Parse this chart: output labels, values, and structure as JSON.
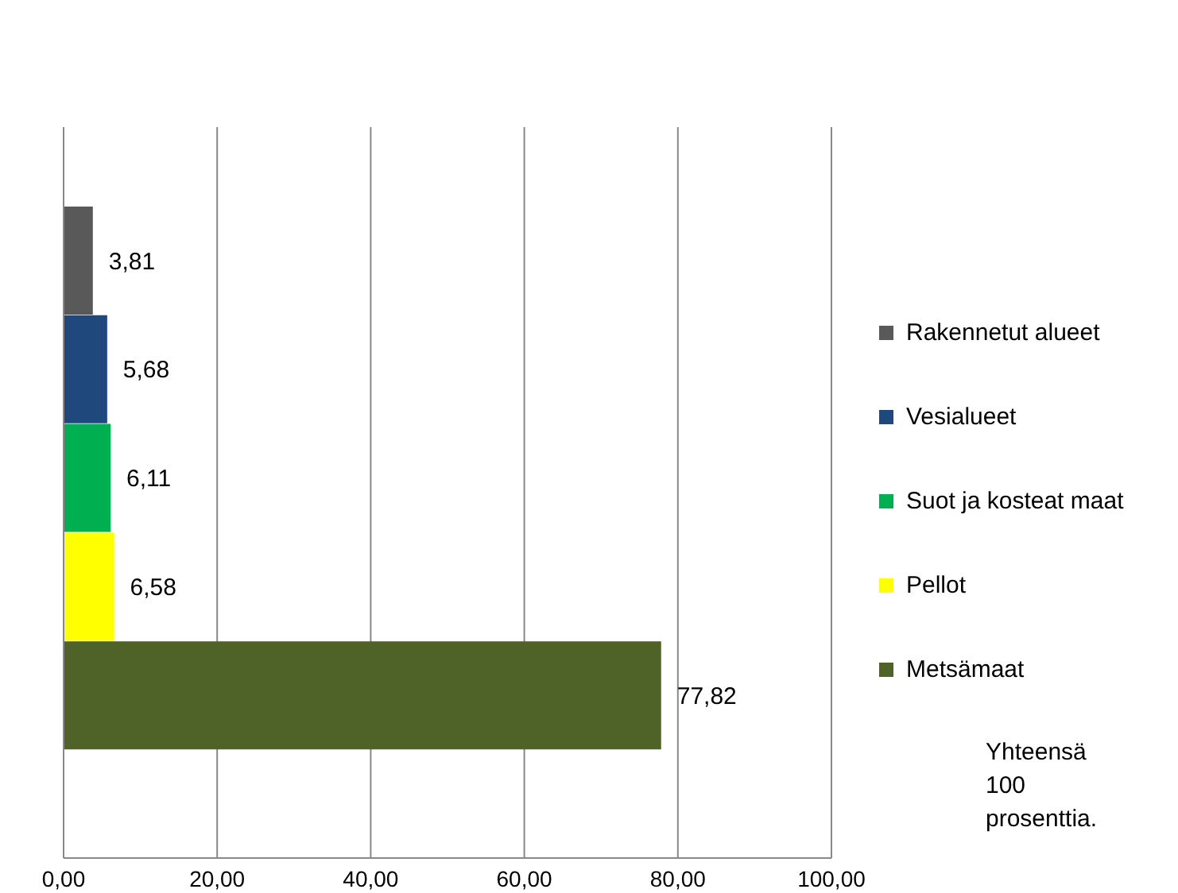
{
  "chart_data": {
    "type": "bar",
    "orientation": "horizontal",
    "stacked": true,
    "categories": [
      null,
      null,
      null,
      null,
      null
    ],
    "series": [
      {
        "name": "Rakennetut alueet",
        "color": "#595959",
        "values": [
          3.81,
          null,
          null,
          null,
          null
        ],
        "value_labels": [
          "3,81",
          null,
          null,
          null,
          null
        ]
      },
      {
        "name": "Vesialueet",
        "color": "#1f497d",
        "values": [
          null,
          5.68,
          null,
          null,
          null
        ],
        "value_labels": [
          null,
          "5,68",
          null,
          null,
          null
        ]
      },
      {
        "name": "Suot ja kosteat maat",
        "color": "#00b050",
        "values": [
          null,
          null,
          6.11,
          null,
          null
        ],
        "value_labels": [
          null,
          null,
          "6,11",
          null,
          null
        ]
      },
      {
        "name": "Pellot",
        "color": "#ffff00",
        "values": [
          null,
          null,
          null,
          6.58,
          null
        ],
        "value_labels": [
          null,
          null,
          null,
          "6,58",
          null
        ]
      },
      {
        "name": "Metsämaat",
        "color": "#4f6228",
        "values": [
          null,
          null,
          null,
          null,
          77.82
        ],
        "value_labels": [
          null,
          null,
          null,
          null,
          "77,82"
        ]
      }
    ],
    "xlim": [
      0,
      100
    ],
    "xticks": [
      {
        "value": 0,
        "label": "0,00"
      },
      {
        "value": 20,
        "label": "20,00"
      },
      {
        "value": 40,
        "label": "40,00"
      },
      {
        "value": 60,
        "label": "60,00"
      },
      {
        "value": 80,
        "label": "80,00"
      },
      {
        "value": 100,
        "label": "100,00"
      }
    ],
    "grid": "x",
    "legend": "right",
    "annotations": [
      "Yhteensä 100 prosenttia."
    ]
  }
}
